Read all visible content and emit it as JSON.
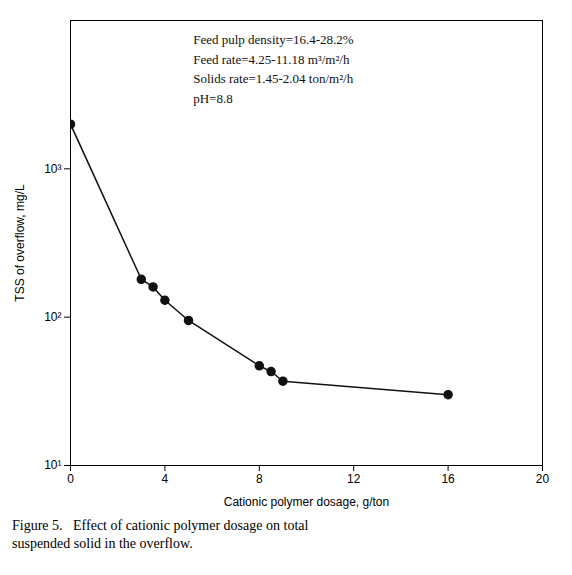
{
  "chart_data": {
    "type": "line",
    "x": [
      0,
      3,
      3.5,
      4,
      5,
      8,
      8.5,
      9,
      16
    ],
    "values": [
      2000,
      180,
      160,
      130,
      95,
      47,
      43,
      37,
      30
    ],
    "xlabel": "Cationic polymer dosage, g/ton",
    "ylabel": "TSS of overflow, mg/L",
    "xlim": [
      0,
      20
    ],
    "ylim": [
      10,
      10000
    ],
    "xticks": [
      0,
      4,
      8,
      12,
      16,
      20
    ],
    "yticks": [
      {
        "value": 10,
        "label": "10¹"
      },
      {
        "value": 100,
        "label": "10²"
      },
      {
        "value": 1000,
        "label": "10³"
      }
    ],
    "log": "y",
    "grid": false,
    "color": "#111111",
    "marker": "circle",
    "annotations": [
      "Feed pulp density=16.4-28.2%",
      "Feed rate=4.25-11.18 m³/m²/h",
      "Solids rate=1.45-2.04 ton/m²/h",
      "pH=8.8"
    ],
    "caption": "Figure 5.   Effect of cationic polymer dosage on total\nsuspended solid in the overflow."
  }
}
